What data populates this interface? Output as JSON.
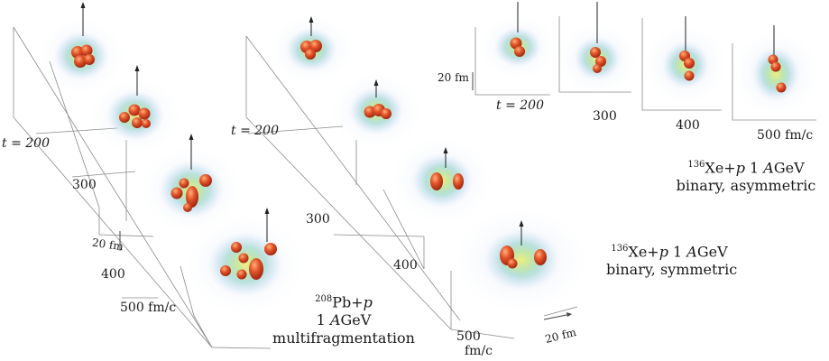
{
  "panels": {
    "multifragmentation": {
      "times": [
        "t = 200",
        "300",
        "400",
        "500 fm/c"
      ],
      "scale": "20 fm",
      "caption": {
        "nucleus_mass": "208",
        "nucleus_symbol": "Pb+",
        "projectile": "p",
        "energy_value": "1 ",
        "energy_unit_italic": "A",
        "energy_unit": "GeV",
        "mode": "multifragmentation"
      }
    },
    "binary_symmetric": {
      "times": [
        "t = 200",
        "300",
        "400",
        "500",
        "fm/c"
      ],
      "scale": "20 fm",
      "caption": {
        "nucleus_mass": "136",
        "nucleus_symbol": "Xe+",
        "projectile": "p",
        "energy_value": " 1 ",
        "energy_unit_italic": "A",
        "energy_unit": "GeV",
        "mode": "binary, symmetric"
      }
    },
    "binary_asymmetric": {
      "times": [
        "t = 200",
        "300",
        "400",
        "500 fm/c"
      ],
      "scale": "20 fm",
      "caption": {
        "nucleus_mass": "136",
        "nucleus_symbol": "Xe+",
        "projectile": "p",
        "energy_value": " 1 ",
        "energy_unit_italic": "A",
        "energy_unit": "GeV",
        "mode": "binary, asymmetric"
      }
    }
  },
  "colors": {
    "fragment": "#d8401c",
    "fragment_highlight": "#f58a4a",
    "halo_inner": "#e2e86a",
    "halo_mid": "#8fd3a8",
    "halo_outer": "#b9d8ef",
    "axis": "#6a6a6a"
  }
}
